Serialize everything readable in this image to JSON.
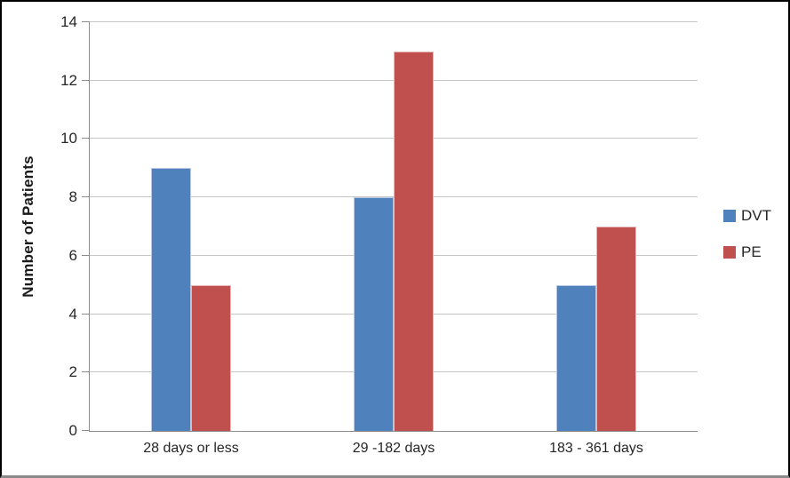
{
  "chart_data": {
    "type": "bar",
    "title": "",
    "xlabel": "",
    "ylabel": "Number of Patients",
    "categories": [
      "28 days or less",
      "29 -182 days",
      "183 - 361 days"
    ],
    "series": [
      {
        "name": "DVT",
        "values": [
          9,
          8,
          5
        ],
        "color": "#4f81bd",
        "border_color": "#b7c9e2"
      },
      {
        "name": "PE",
        "values": [
          5,
          13,
          7
        ],
        "color": "#c0504d",
        "border_color": "#e5b8b7"
      }
    ],
    "ylim": [
      0,
      14
    ],
    "yticks": [
      0,
      2,
      4,
      6,
      8,
      10,
      12,
      14
    ],
    "grid": "horizontal",
    "legend_position": "right",
    "gridline_color": "#c6c6c6",
    "axis_color": "#8c8c8c",
    "background": "#ffffff",
    "frame_border_color": "#000000"
  }
}
